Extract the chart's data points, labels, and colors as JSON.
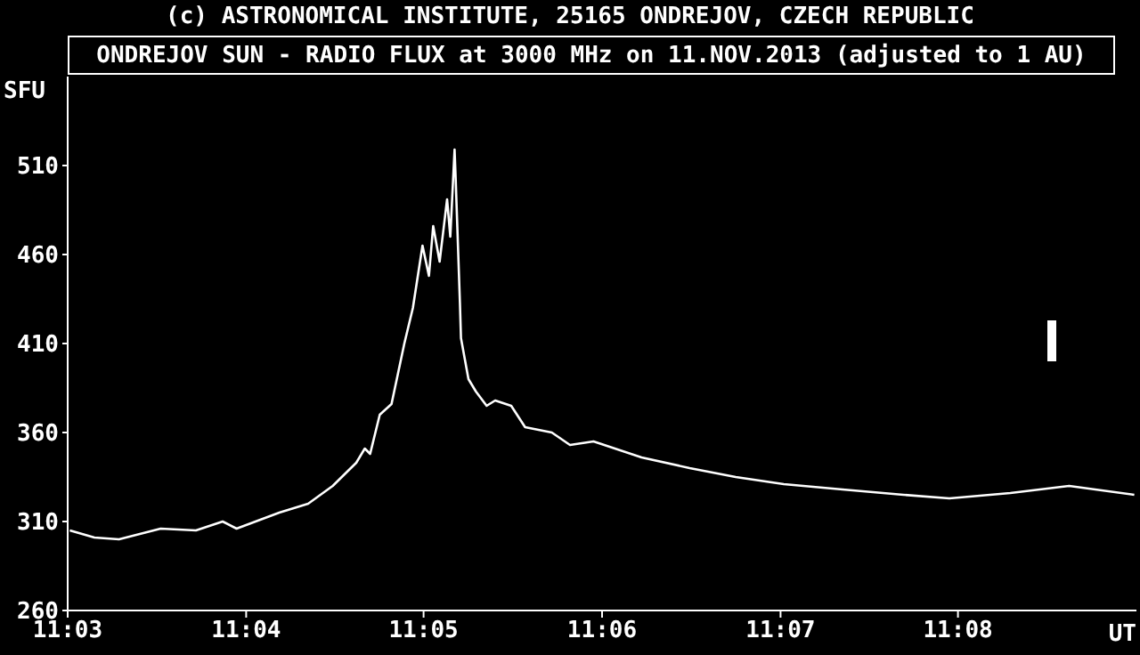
{
  "chart_data": {
    "type": "line",
    "title": "ONDREJOV SUN - RADIO FLUX at 3000 MHz on 11.NOV.2013 (adjusted to 1 AU)",
    "annotations": [
      "(c) ASTRONOMICAL INSTITUTE, 25165 ONDREJOV, CZECH REPUBLIC"
    ],
    "ylabel": "SFU",
    "xlabel": "UT",
    "x": [
      11.0502,
      11.0525,
      11.0548,
      11.0587,
      11.062,
      11.0645,
      11.0658,
      11.0698,
      11.0725,
      11.0748,
      11.077,
      11.0778,
      11.0783,
      11.0792,
      11.0803,
      11.0815,
      11.0823,
      11.0832,
      11.0838,
      11.0842,
      11.0848,
      11.0855,
      11.0858,
      11.0862,
      11.0863,
      11.0867,
      11.0868,
      11.0875,
      11.0882,
      11.0892,
      11.09,
      11.0915,
      11.0928,
      11.0953,
      11.097,
      11.0992,
      11.1037,
      11.1082,
      11.1125,
      11.117,
      11.1225,
      11.1282,
      11.1325,
      11.1382,
      11.1437,
      11.1498
    ],
    "series": [
      {
        "color": "#ffffff",
        "values": [
          305,
          301,
          300,
          306,
          305,
          310,
          306,
          315,
          320,
          330,
          343,
          351,
          348,
          370,
          376,
          410,
          430,
          465,
          448,
          476,
          456,
          491,
          470,
          519,
          503,
          433,
          413,
          390,
          383,
          375,
          378,
          375,
          363,
          360,
          353,
          355,
          346,
          340,
          335,
          331,
          328,
          325,
          323,
          326,
          330,
          325
        ]
      }
    ],
    "xlim": [
      11.05,
      11.15
    ],
    "xticks": [
      {
        "value": 11.05,
        "label": "11:03"
      },
      {
        "value": 11.0667,
        "label": "11:04"
      },
      {
        "value": 11.0833,
        "label": "11:05"
      },
      {
        "value": 11.1,
        "label": "11:06"
      },
      {
        "value": 11.1167,
        "label": "11:07"
      },
      {
        "value": 11.1333,
        "label": "11:08"
      }
    ],
    "ylim": [
      260,
      560
    ],
    "yticks": [
      260,
      310,
      360,
      410,
      460,
      510
    ],
    "grid": false,
    "legend": false,
    "marker": "none",
    "line_style": "solid"
  }
}
